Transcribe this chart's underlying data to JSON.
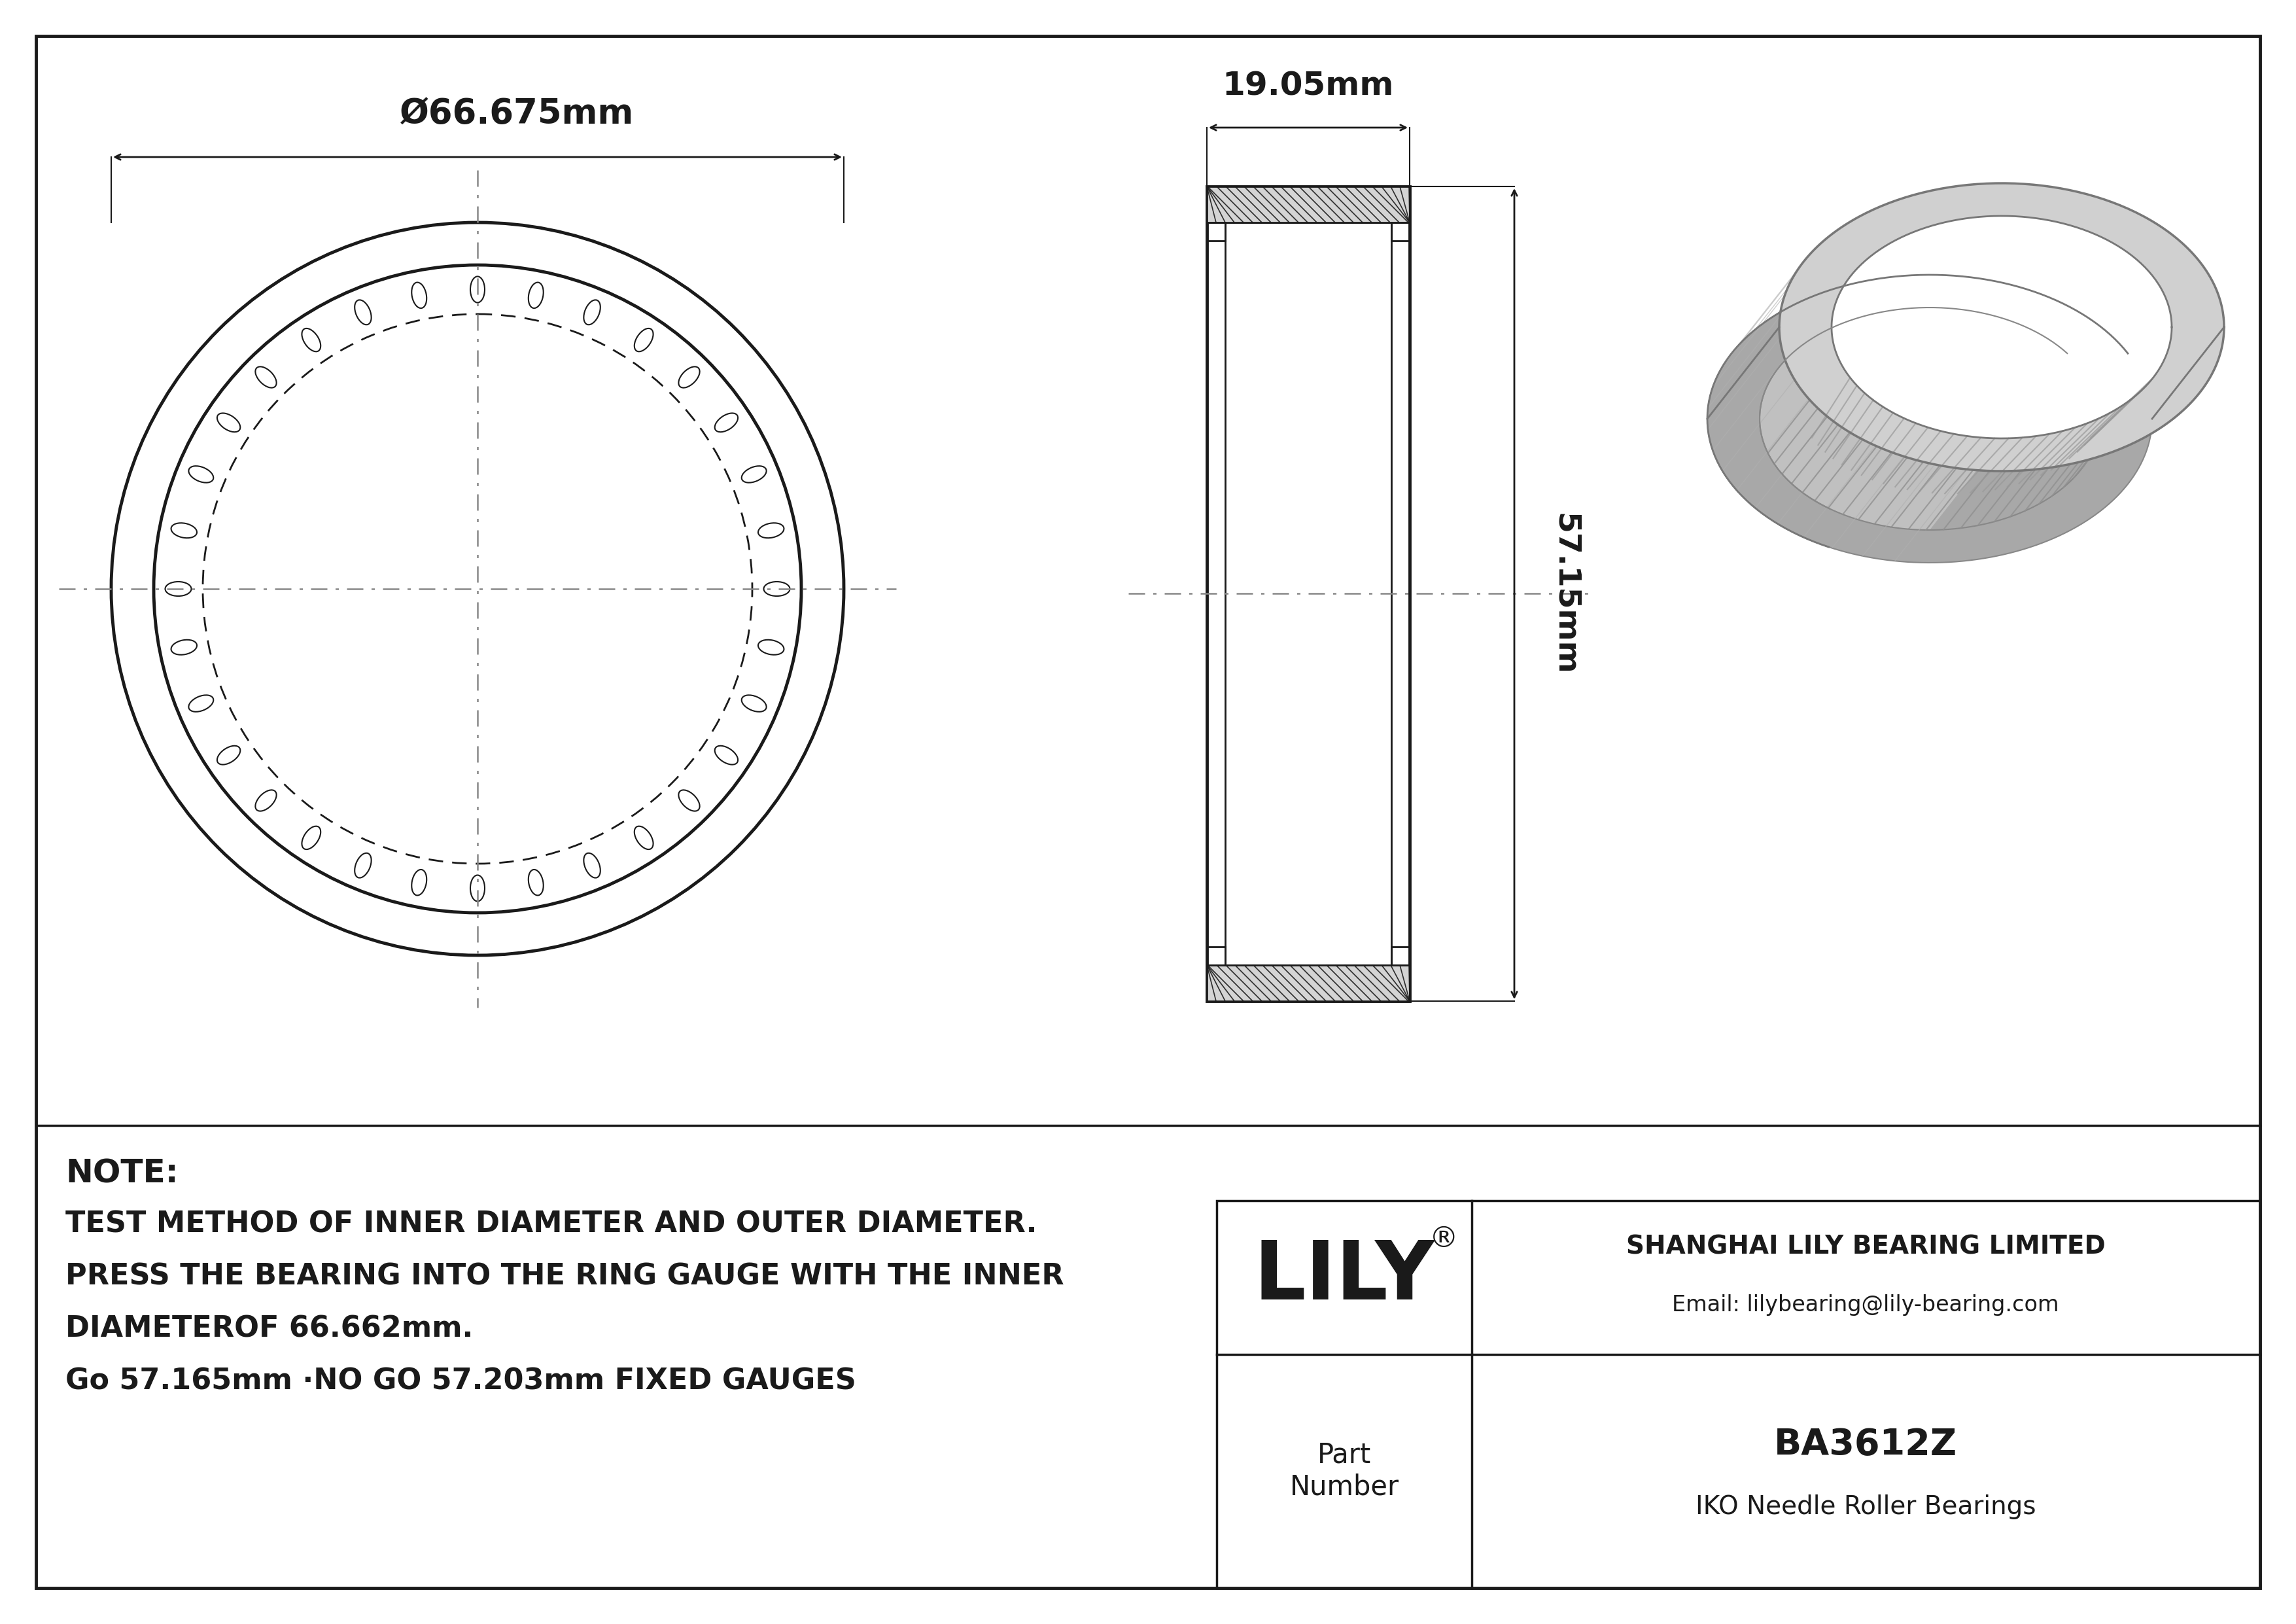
{
  "bg_color": "#ffffff",
  "line_color": "#1a1a1a",
  "outer_diameter_label": "Ø66.675mm",
  "width_label": "19.05mm",
  "height_label": "57.15mm",
  "note_lines": [
    "NOTE:",
    "TEST METHOD OF INNER DIAMETER AND OUTER DIAMETER.",
    "PRESS THE BEARING INTO THE RING GAUGE WITH THE INNER",
    "DIAMETEROF 66.662mm.",
    "Go 57.165mm ·NO GO 57.203mm FIXED GAUGES"
  ],
  "company_name": "SHANGHAI LILY BEARING LIMITED",
  "company_email": "Email: lilybearing@lily-bearing.com",
  "lily_text": "LILY",
  "part_label": "Part\nNumber",
  "part_number": "BA3612Z",
  "part_type": "IKO Needle Roller Bearings",
  "iso_color_outer": "#b8b8b8",
  "iso_color_inner": "#a0a0a0",
  "iso_color_face": "#c8c8c8",
  "iso_color_stripe": "#b0b0b0"
}
